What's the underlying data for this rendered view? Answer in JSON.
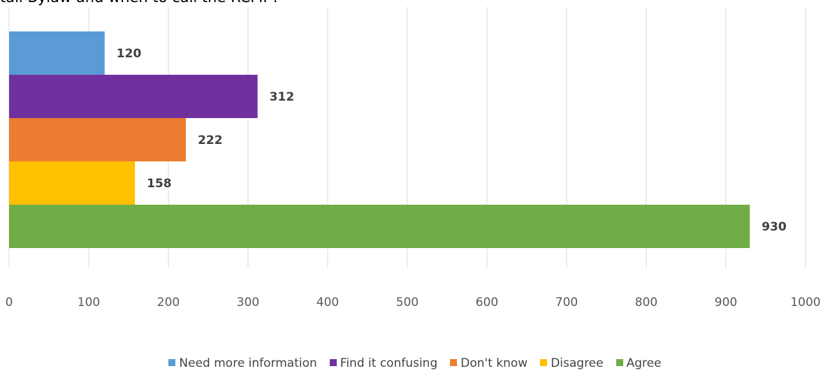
{
  "title": "tail Bylaw and when to call the RCMP?",
  "chart_data": {
    "type": "bar",
    "orientation": "horizontal",
    "title": "tail Bylaw and when to call the RCMP?",
    "xlim": [
      0,
      1000
    ],
    "ticks": [
      "0",
      "100",
      "200",
      "300",
      "400",
      "500",
      "600",
      "700",
      "800",
      "900",
      "1000"
    ],
    "grid": "vertical",
    "legend_position": "bottom",
    "series": [
      {
        "name": "Need more information",
        "value": 120,
        "label": "120",
        "color": "#5B9BD5"
      },
      {
        "name": "Find it confusing",
        "value": 312,
        "label": "312",
        "color": "#7030A0"
      },
      {
        "name": "Don't know",
        "value": 222,
        "label": "222",
        "color": "#ED7D31"
      },
      {
        "name": "Disagree",
        "value": 158,
        "label": "158",
        "color": "#FFC000"
      },
      {
        "name": "Agree",
        "value": 930,
        "label": "930",
        "color": "#70AD47"
      }
    ]
  }
}
